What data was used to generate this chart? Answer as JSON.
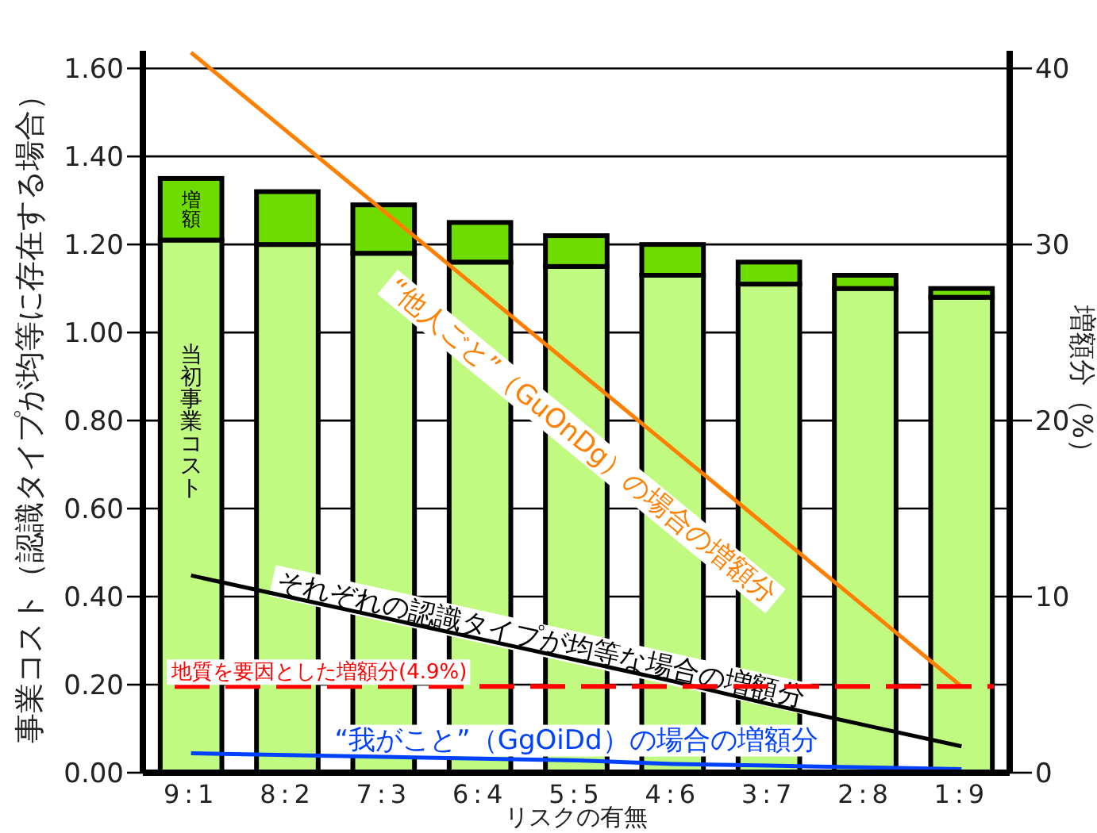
{
  "chart_data": {
    "type": "bar",
    "stacked": true,
    "grid": "y",
    "legend": false,
    "xlabel": "リスクの有無",
    "ylabel": "事業コスト（認識タイプが均等に存在する場合）",
    "y2label": "増額分（%）",
    "categories": [
      "9:1",
      "8:2",
      "7:3",
      "6:4",
      "5:5",
      "4:6",
      "3:7",
      "2:8",
      "1:9"
    ],
    "ylim": [
      0,
      1.64
    ],
    "yticks": [
      {
        "value": 0,
        "label": "0.00"
      },
      {
        "value": 0.2,
        "label": "0.20"
      },
      {
        "value": 0.4,
        "label": "0.40"
      },
      {
        "value": 0.6,
        "label": "0.60"
      },
      {
        "value": 0.8,
        "label": "0.80"
      },
      {
        "value": 1.0,
        "label": "1.00"
      },
      {
        "value": 1.2,
        "label": "1.20"
      },
      {
        "value": 1.4,
        "label": "1.40"
      },
      {
        "value": 1.6,
        "label": "1.60"
      }
    ],
    "y2lim": [
      0,
      41
    ],
    "y2ticks": [
      0,
      10,
      20,
      30,
      40
    ],
    "series": [
      {
        "name": "当初事業コスト",
        "color": "#c0fa80",
        "values": [
          1.21,
          1.2,
          1.18,
          1.16,
          1.15,
          1.13,
          1.11,
          1.1,
          1.08
        ]
      },
      {
        "name": "増額",
        "color": "#6fdc00",
        "values": [
          0.14,
          0.12,
          0.11,
          0.09,
          0.07,
          0.07,
          0.05,
          0.03,
          0.02
        ]
      },
      {
        "type": "line",
        "axis": "y2",
        "name": "“他人ごと”（GuOnDg）の場合の増額分",
        "color": "#ff7f00",
        "values": [
          40.9,
          36.4,
          31.9,
          27.4,
          22.9,
          18.4,
          13.9,
          9.4,
          4.9
        ]
      },
      {
        "type": "line",
        "axis": "y2",
        "name": "それぞれの認識タイプが均等な場合の増額分",
        "color": "#000000",
        "values": [
          11.2,
          10.0,
          8.8,
          7.6,
          6.4,
          5.2,
          3.9,
          2.7,
          1.5
        ]
      },
      {
        "type": "line",
        "axis": "y2",
        "name": "“我がこと”（GgOiDd）の場合の増額分",
        "color": "#0040ff",
        "values": [
          1.1,
          1.0,
          0.9,
          0.8,
          0.7,
          0.5,
          0.4,
          0.3,
          0.2
        ]
      }
    ],
    "ref_lines": [
      {
        "axis": "y2",
        "value": 4.9,
        "label": "地質を要因とした増額分(4.9%)",
        "color": "#ff0000",
        "line_style": "dashed"
      }
    ]
  }
}
